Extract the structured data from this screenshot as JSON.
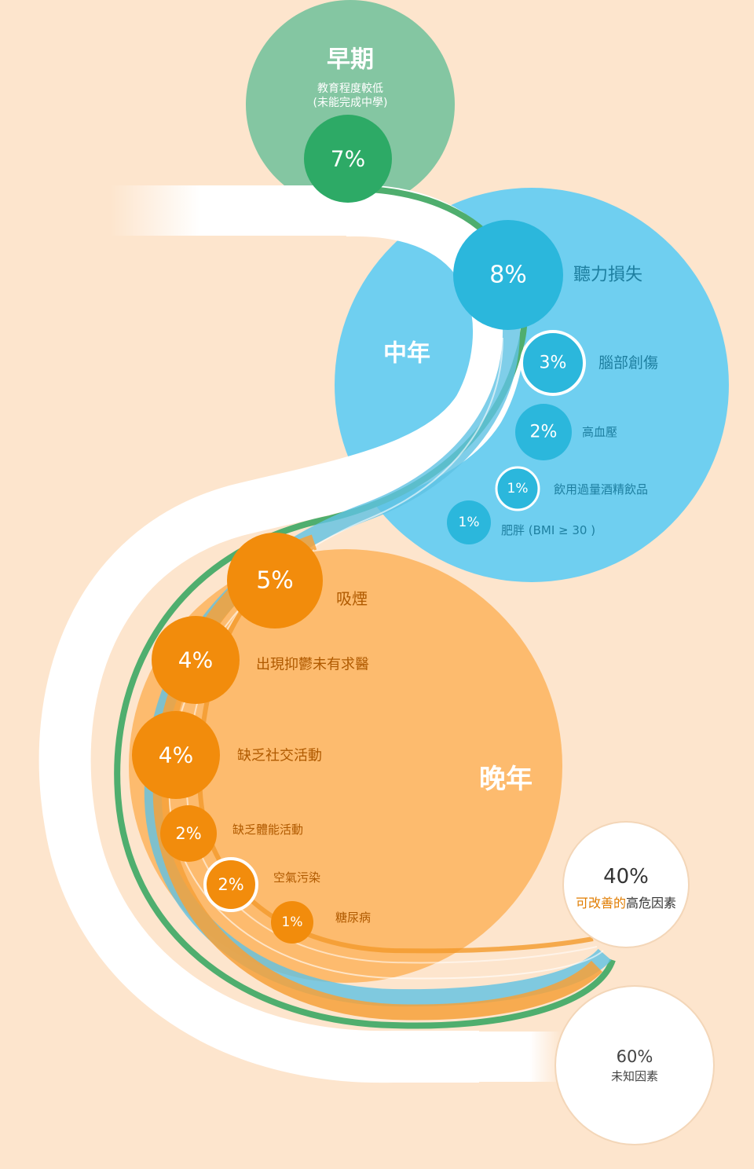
{
  "stages": {
    "early": {
      "title": "早期",
      "sub1": "教育程度較低",
      "sub2": "(未能完成中學)"
    },
    "mid": {
      "title": "中年"
    },
    "late": {
      "title": "晚年"
    }
  },
  "factors": {
    "education": {
      "pct": "7%"
    },
    "hearing": {
      "pct": "8%",
      "label": "聽力損失"
    },
    "tbi": {
      "pct": "3%",
      "label": "腦部創傷"
    },
    "hypertension": {
      "pct": "2%",
      "label": "高血壓"
    },
    "alcohol": {
      "pct": "1%",
      "label": "飲用過量酒精飲品"
    },
    "obesity": {
      "pct": "1%",
      "label": "肥胖 (BMI ≥ 30 )"
    },
    "smoking": {
      "pct": "5%",
      "label": "吸煙"
    },
    "depression": {
      "pct": "4%",
      "label": "出現抑鬱未有求醫"
    },
    "social": {
      "pct": "4%",
      "label": "缺乏社交活動"
    },
    "physical": {
      "pct": "2%",
      "label": "缺乏體能活動"
    },
    "pollution": {
      "pct": "2%",
      "label": "空氣污染"
    },
    "diabetes": {
      "pct": "1%",
      "label": "糖尿病"
    }
  },
  "summary": {
    "modifiable": {
      "pct": "40%",
      "highlight": "可改善的",
      "rest": "高危因素"
    },
    "unknown": {
      "pct": "60%",
      "label": "未知因素"
    }
  },
  "colors": {
    "background": "#fde5cd",
    "green_light": "#84c6a2",
    "green_dark": "#2daa66",
    "green_band": "#4fae6e",
    "blue_light": "#6fcff0",
    "blue_dark": "#2bb7dc",
    "orange_light": "#fdb866",
    "orange_dark": "#f28c0c",
    "text_blue": "#1e7fa0",
    "text_orange": "#b05a00",
    "text_dark": "#333333"
  }
}
